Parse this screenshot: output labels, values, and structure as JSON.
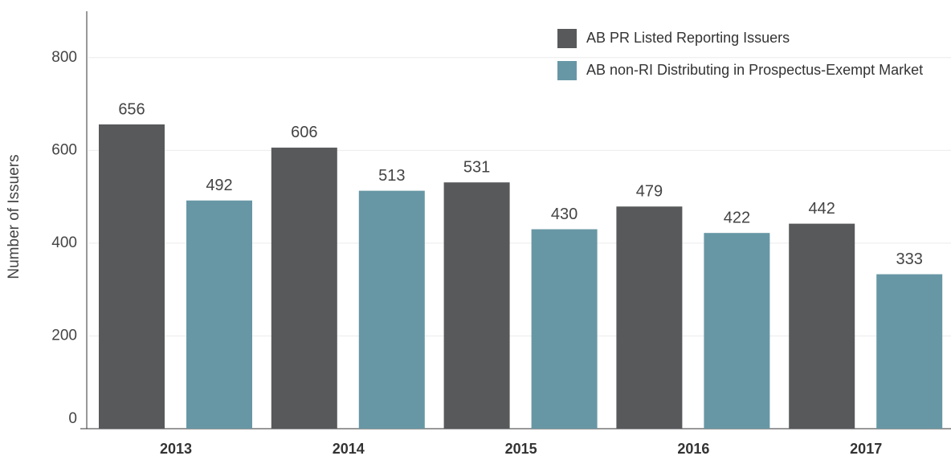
{
  "chart_data": {
    "type": "bar",
    "y_label": "Number of Issuers",
    "categories": [
      "2013",
      "2014",
      "2015",
      "2016",
      "2017"
    ],
    "series": [
      {
        "name": "AB PR Listed Reporting Issuers",
        "color": "#58595b",
        "values": [
          656,
          606,
          531,
          479,
          442
        ]
      },
      {
        "name": "AB non-RI Distributing in Prospectus-Exempt Market",
        "color": "#6797a5",
        "values": [
          492,
          513,
          430,
          422,
          333
        ]
      }
    ],
    "ylim": [
      0,
      900
    ],
    "yticks": [
      0,
      200,
      400,
      600,
      800
    ],
    "grid": true,
    "legend": "top-right"
  }
}
